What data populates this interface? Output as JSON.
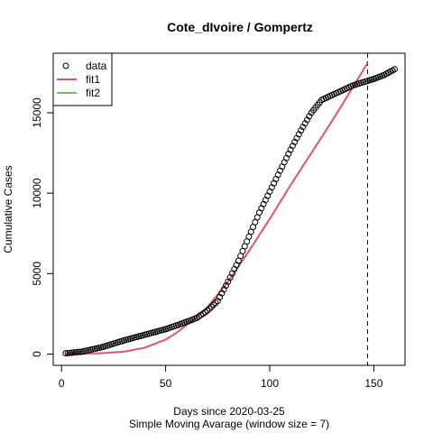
{
  "chart_data": {
    "type": "scatter",
    "title": "Cote_dIvoire / Gompertz",
    "xlabel": "Days since 2020-03-25",
    "subtitle": "Simple Moving Avarage (window size = 7)",
    "ylabel": "Cumulative Cases",
    "xlim": [
      -4,
      165
    ],
    "ylim": [
      -700,
      18700
    ],
    "xticks": [
      0,
      50,
      100,
      150
    ],
    "yticks": [
      0,
      5000,
      10000,
      15000
    ],
    "xtick_labels": [
      "0",
      "50",
      "100",
      "150"
    ],
    "ytick_labels": [
      "0",
      "5000",
      "10000",
      "15000"
    ],
    "vline_x": 147,
    "legend": {
      "position": "top-left",
      "entries": [
        {
          "label": "data",
          "symbol": "circle",
          "color": "#000000"
        },
        {
          "label": "fit1",
          "symbol": "line",
          "color": "#DF536B"
        },
        {
          "label": "fit2",
          "symbol": "line",
          "color": "#61D04F"
        }
      ]
    },
    "series": [
      {
        "name": "data",
        "kind": "points",
        "color": "#000000",
        "x": [
          2,
          10,
          20,
          30,
          40,
          50,
          60,
          65,
          70,
          75,
          80,
          85,
          90,
          95,
          100,
          105,
          110,
          115,
          120,
          125,
          130,
          135,
          140,
          145,
          150,
          155,
          160
        ],
        "y": [
          50,
          150,
          450,
          850,
          1200,
          1550,
          2000,
          2250,
          2700,
          3300,
          4500,
          5800,
          7300,
          8800,
          10100,
          11400,
          12700,
          13900,
          15000,
          15800,
          16100,
          16400,
          16700,
          16900,
          17100,
          17350,
          17700
        ]
      },
      {
        "name": "fit1",
        "kind": "line",
        "color": "#DF536B",
        "x": [
          2,
          10,
          20,
          30,
          40,
          50,
          55,
          60,
          65,
          70,
          80,
          90,
          100,
          110,
          120,
          130,
          140,
          147
        ],
        "y": [
          0,
          20,
          60,
          150,
          400,
          900,
          1300,
          1800,
          2300,
          2900,
          4500,
          6400,
          8400,
          10500,
          12500,
          14500,
          16600,
          18100
        ]
      },
      {
        "name": "fit2",
        "kind": "line",
        "color": "#61D04F",
        "x": [
          147,
          150,
          155,
          160
        ],
        "y": [
          16900,
          17050,
          17350,
          17700
        ]
      }
    ]
  }
}
